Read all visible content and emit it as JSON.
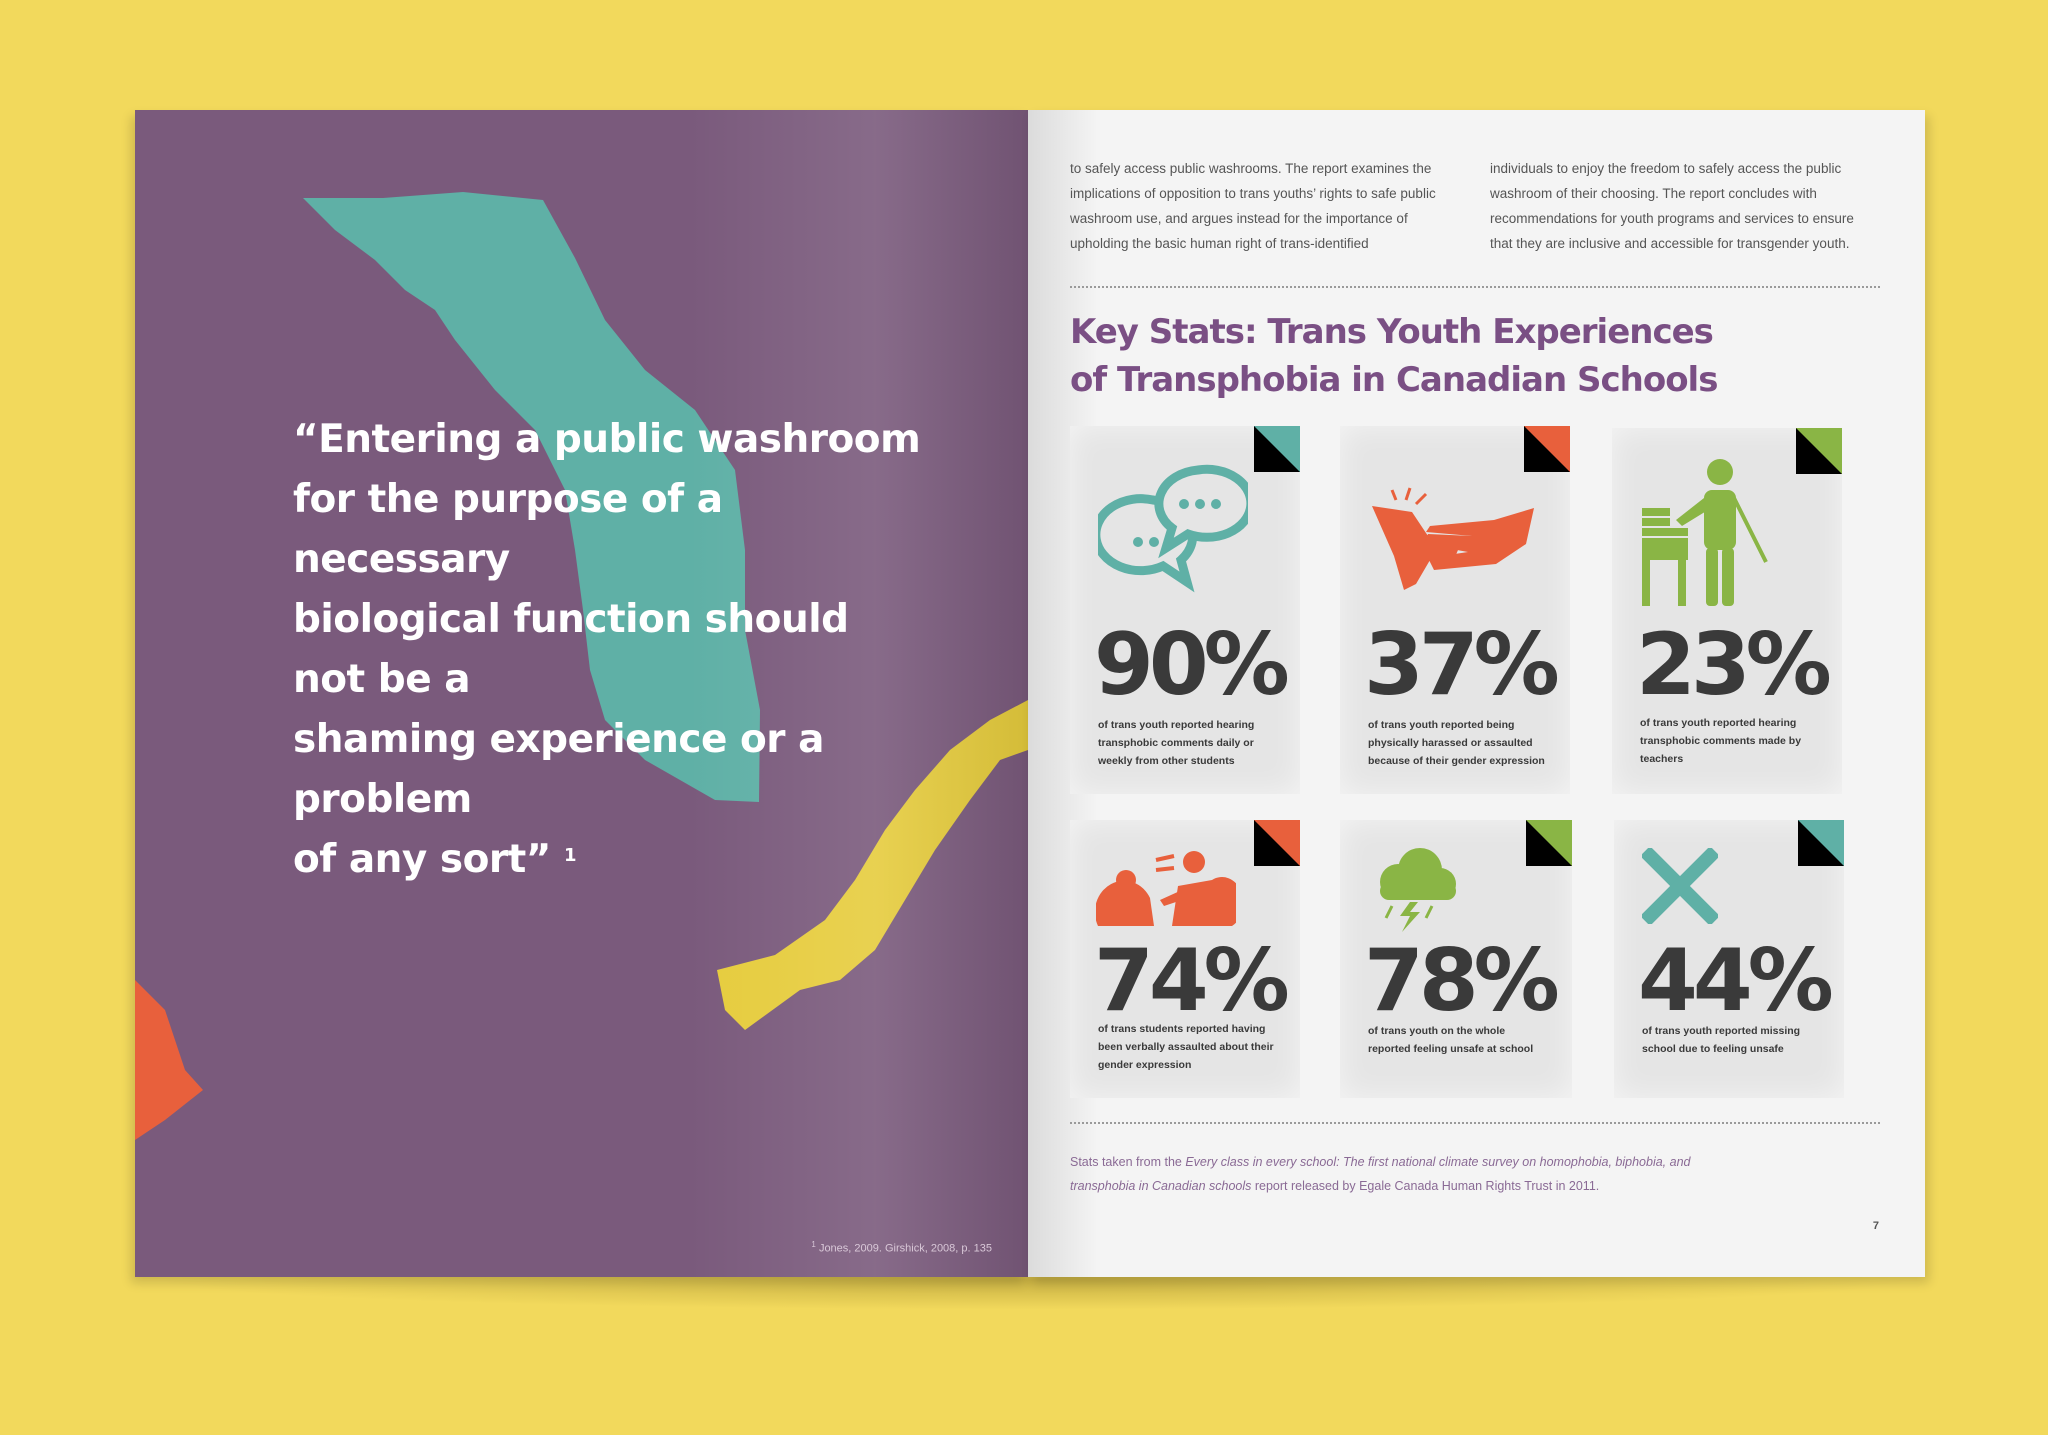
{
  "left_page": {
    "quote_lines": [
      "“Entering a public washroom",
      "for the purpose of a necessary",
      "biological function should not be a",
      "shaming experience or a problem",
      "of any sort”"
    ],
    "quote_footnote_marker": "1",
    "footnote": {
      "marker": "1",
      "text": "Jones, 2009. Girshick, 2008, p. 135"
    },
    "colors": {
      "background": "#7a5a7c",
      "teal_shape": "#5fb0a6",
      "yellow_shape": "#e6cc3d",
      "orange_shape": "#e8603c"
    }
  },
  "right_page": {
    "intro_left": "to safely access public washrooms. The report examines the implications of opposition to trans youths’ rights to safe public washroom use, and argues instead for the importance of upholding the basic human right of trans-identified",
    "intro_right": "individuals to enjoy the freedom to safely access the public washroom of their choosing. The report concludes with recommendations for youth programs and services to ensure that they are inclusive and accessible for transgender youth.",
    "title_line1": "Key Stats: Trans Youth Experiences",
    "title_line2": "of Transphobia in Canadian Schools",
    "stats": [
      {
        "value": "90%",
        "description": "of trans youth reported hearing transphobic comments daily or weekly from other students",
        "icon": "speech-bubbles-icon",
        "accent": "#5fb0a6"
      },
      {
        "value": "37%",
        "description": "of trans youth reported being physically harassed or assaulted because of their gender expression",
        "icon": "grabbing-hands-icon",
        "accent": "#e8603c"
      },
      {
        "value": "23%",
        "description": "of trans youth reported hearing transphobic comments made by teachers",
        "icon": "teacher-at-desk-icon",
        "accent": "#8ab545"
      },
      {
        "value": "74%",
        "description": "of trans students reported having been verbally assaulted about their gender expression",
        "icon": "shouting-people-icon",
        "accent": "#e8603c"
      },
      {
        "value": "78%",
        "description": "of trans youth on the whole reported feeling unsafe at school",
        "icon": "storm-cloud-icon",
        "accent": "#8ab545"
      },
      {
        "value": "44%",
        "description": "of trans youth reported missing school due to feeling unsafe",
        "icon": "x-mark-icon",
        "accent": "#5fb0a6"
      }
    ],
    "source": {
      "prefix": "Stats taken from the ",
      "title": "Every class in every school: The first national climate survey on homophobia, biphobia, and transphobia in Canadian schools",
      "suffix": " report released by Egale Canada Human Rights Trust in 2011."
    },
    "page_number": "7"
  }
}
